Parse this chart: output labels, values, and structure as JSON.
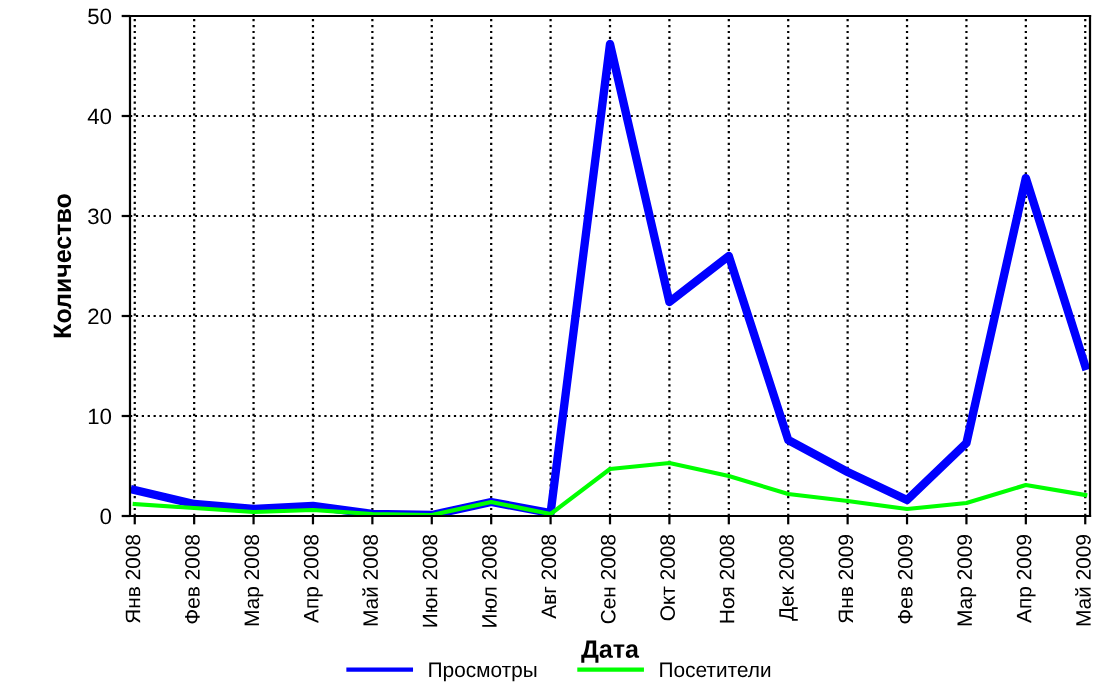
{
  "chart_data": {
    "type": "line",
    "xlabel": "Дата",
    "ylabel": "Количество",
    "categories": [
      "Янв 2008",
      "Фев 2008",
      "Мар 2008",
      "Апр 2008",
      "Май 2008",
      "Июн 2008",
      "Июл 2008",
      "Авг 2008",
      "Сен 2008",
      "Окт 2008",
      "Ноя 2008",
      "Дек 2008",
      "Янв 2009",
      "Фев 2009",
      "Мар 2009",
      "Апр 2009",
      "Май 2009"
    ],
    "series": [
      {
        "name": "Просмотры",
        "color": "#0000ff",
        "values": [
          2.6,
          1.2,
          0.7,
          1.0,
          0.2,
          0.1,
          1.4,
          0.3,
          47.2,
          21.4,
          26,
          7.6,
          4.4,
          1.6,
          7.3,
          33.8,
          15
        ]
      },
      {
        "name": "Посетители",
        "color": "#00ff00",
        "values": [
          1.2,
          0.8,
          0.4,
          0.6,
          0.2,
          0.1,
          1.4,
          0.2,
          4.7,
          5.3,
          4.0,
          2.2,
          1.5,
          0.7,
          1.3,
          3.1,
          2.1
        ]
      }
    ],
    "ylim": [
      0,
      50
    ],
    "yticks": [
      0,
      10,
      20,
      30,
      40,
      50
    ],
    "grid": true,
    "legend": "bottom",
    "marker": "none",
    "line_style": "solid"
  }
}
